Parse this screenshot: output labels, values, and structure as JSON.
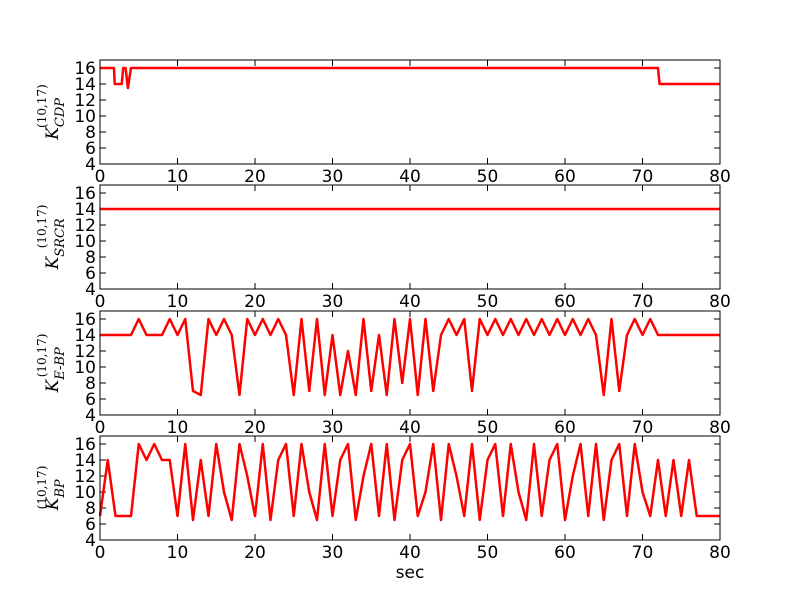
{
  "chart_data": [
    {
      "type": "line",
      "ylabel": "K",
      "ylabel_sub": "CDP",
      "ylabel_sup": "(10,17)",
      "xlim": [
        0,
        80
      ],
      "xticks": [
        0,
        10,
        20,
        30,
        40,
        50,
        60,
        70,
        80
      ],
      "ylim": [
        4,
        17
      ],
      "yticks": [
        4,
        6,
        8,
        10,
        12,
        14,
        16
      ],
      "series": [
        {
          "color": "#ff0000",
          "x": [
            0,
            1.8,
            1.9,
            2.8,
            3.0,
            3.3,
            3.6,
            4.0,
            72.0,
            72.2,
            80
          ],
          "values": [
            16,
            16,
            14,
            14,
            16,
            16,
            13.5,
            16,
            16,
            14,
            14
          ]
        }
      ]
    },
    {
      "type": "line",
      "ylabel": "K",
      "ylabel_sub": "SRCR",
      "ylabel_sup": "(10,17)",
      "xlim": [
        0,
        80
      ],
      "xticks": [
        0,
        10,
        20,
        30,
        40,
        50,
        60,
        70,
        80
      ],
      "ylim": [
        4,
        17
      ],
      "yticks": [
        4,
        6,
        8,
        10,
        12,
        14,
        16
      ],
      "series": [
        {
          "color": "#ff0000",
          "x": [
            0,
            80
          ],
          "values": [
            14,
            14
          ]
        }
      ]
    },
    {
      "type": "line",
      "ylabel": "K",
      "ylabel_sub": "E-BP",
      "ylabel_sup": "(10,17)",
      "xlim": [
        0,
        80
      ],
      "xticks": [
        0,
        10,
        20,
        30,
        40,
        50,
        60,
        70,
        80
      ],
      "ylim": [
        4,
        17
      ],
      "yticks": [
        4,
        6,
        8,
        10,
        12,
        14,
        16
      ],
      "series": [
        {
          "color": "#ff0000",
          "x": [
            0,
            1,
            2,
            3,
            4,
            5,
            6,
            7,
            8,
            9,
            10,
            11,
            12,
            13,
            14,
            15,
            16,
            17,
            18,
            19,
            20,
            21,
            22,
            23,
            24,
            25,
            26,
            27,
            28,
            29,
            30,
            31,
            32,
            33,
            34,
            35,
            36,
            37,
            38,
            39,
            40,
            41,
            42,
            43,
            44,
            45,
            46,
            47,
            48,
            49,
            50,
            51,
            52,
            53,
            54,
            55,
            56,
            57,
            58,
            59,
            60,
            61,
            62,
            63,
            64,
            65,
            66,
            67,
            68,
            69,
            70,
            71,
            72,
            73,
            74,
            75,
            76,
            77,
            78,
            79,
            80
          ],
          "values": [
            14,
            14,
            14,
            14,
            14,
            16,
            14,
            14,
            14,
            16,
            14,
            16,
            7,
            6.5,
            16,
            14,
            16,
            14,
            6.5,
            16,
            14,
            16,
            14,
            16,
            14,
            6.5,
            16,
            7,
            16,
            6.5,
            14,
            6.5,
            12,
            6.5,
            16,
            7,
            14,
            6.5,
            16,
            8,
            16,
            6.5,
            16,
            7,
            14,
            16,
            14,
            16,
            7,
            16,
            14,
            16,
            14,
            16,
            14,
            16,
            14,
            16,
            14,
            16,
            14,
            16,
            14,
            16,
            14,
            6.5,
            16,
            7,
            14,
            16,
            14,
            16,
            14,
            14,
            14,
            14,
            14,
            14,
            14,
            14,
            14
          ]
        }
      ]
    },
    {
      "type": "line",
      "ylabel": "K",
      "ylabel_sub": "BP",
      "ylabel_sup": "(10,17)",
      "xlabel": "sec",
      "xlim": [
        0,
        80
      ],
      "xticks": [
        0,
        10,
        20,
        30,
        40,
        50,
        60,
        70,
        80
      ],
      "ylim": [
        4,
        17
      ],
      "yticks": [
        4,
        6,
        8,
        10,
        12,
        14,
        16
      ],
      "series": [
        {
          "color": "#ff0000",
          "x": [
            0,
            1,
            2,
            3,
            4,
            5,
            6,
            7,
            8,
            9,
            10,
            11,
            12,
            13,
            14,
            15,
            16,
            17,
            18,
            19,
            20,
            21,
            22,
            23,
            24,
            25,
            26,
            27,
            28,
            29,
            30,
            31,
            32,
            33,
            34,
            35,
            36,
            37,
            38,
            39,
            40,
            41,
            42,
            43,
            44,
            45,
            46,
            47,
            48,
            49,
            50,
            51,
            52,
            53,
            54,
            55,
            56,
            57,
            58,
            59,
            60,
            61,
            62,
            63,
            64,
            65,
            66,
            67,
            68,
            69,
            70,
            71,
            72,
            73,
            74,
            75,
            76,
            77,
            78,
            79,
            80
          ],
          "values": [
            7,
            14,
            7,
            7,
            7,
            16,
            14,
            16,
            14,
            14,
            7,
            16,
            6.5,
            14,
            7,
            16,
            10,
            6.5,
            16,
            12,
            7,
            16,
            6.5,
            14,
            16,
            7,
            16,
            10,
            6.5,
            16,
            7,
            14,
            16,
            6.5,
            12,
            16,
            7,
            16,
            6.5,
            14,
            16,
            7,
            10,
            16,
            6.5,
            16,
            12,
            7,
            16,
            6.5,
            14,
            16,
            7,
            16,
            10,
            6.5,
            16,
            7,
            14,
            16,
            6.5,
            12,
            16,
            7,
            16,
            6.5,
            14,
            16,
            7,
            16,
            10,
            7,
            14,
            7,
            14,
            7,
            14,
            7,
            7,
            7,
            7
          ]
        }
      ]
    }
  ]
}
